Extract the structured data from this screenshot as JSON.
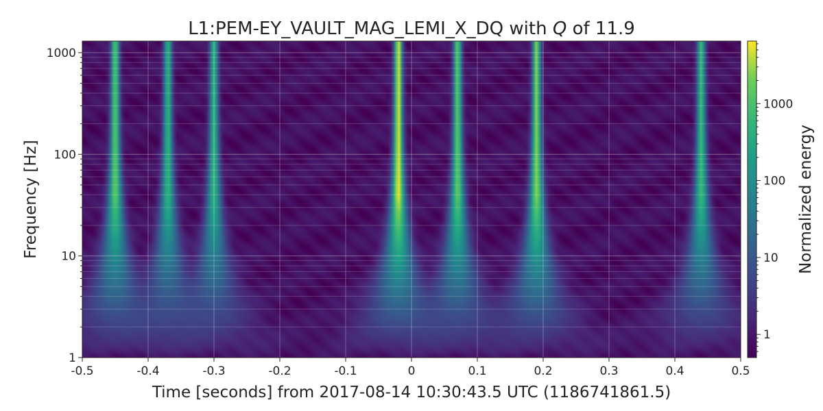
{
  "chart_data": {
    "type": "heatmap",
    "title": {
      "prefix": "L1:PEM-EY_VAULT_MAG_LEMI_X_DQ with ",
      "q_symbol": "Q",
      "suffix": " of 11.9"
    },
    "xlabel": "Time [seconds] from 2017-08-14 10:30:43.5 UTC (1186741861.5)",
    "ylabel": "Frequency [Hz]",
    "colorbar_label": "Normalized energy",
    "xlim": [
      -0.5,
      0.5
    ],
    "ylim": [
      1,
      1300
    ],
    "y_scale": "log",
    "colormap": "viridis",
    "grid": true,
    "x_ticks": [
      {
        "value": -0.5,
        "label": "-0.5"
      },
      {
        "value": -0.4,
        "label": "-0.4"
      },
      {
        "value": -0.3,
        "label": "-0.3"
      },
      {
        "value": -0.2,
        "label": "-0.2"
      },
      {
        "value": -0.1,
        "label": "-0.1"
      },
      {
        "value": 0,
        "label": "0"
      },
      {
        "value": 0.1,
        "label": "0.1"
      },
      {
        "value": 0.2,
        "label": "0.2"
      },
      {
        "value": 0.3,
        "label": "0.3"
      },
      {
        "value": 0.4,
        "label": "0.4"
      },
      {
        "value": 0.5,
        "label": "0.5"
      }
    ],
    "y_ticks": [
      {
        "value": 1,
        "label": "1"
      },
      {
        "value": 10,
        "label": "10"
      },
      {
        "value": 100,
        "label": "100"
      },
      {
        "value": 1000,
        "label": "1000"
      }
    ],
    "colorbar": {
      "scale": "log",
      "range": [
        0.5,
        6500
      ],
      "ticks": [
        {
          "value": 1,
          "label": "1"
        },
        {
          "value": 10,
          "label": "10"
        },
        {
          "value": 100,
          "label": "100"
        },
        {
          "value": 1000,
          "label": "1000"
        }
      ]
    },
    "glitches": [
      {
        "time": -0.45,
        "peak_energy": 1500
      },
      {
        "time": -0.37,
        "peak_energy": 500
      },
      {
        "time": -0.3,
        "peak_energy": 500
      },
      {
        "time": -0.02,
        "peak_energy": 6000
      },
      {
        "time": 0.07,
        "peak_energy": 1500
      },
      {
        "time": 0.19,
        "peak_energy": 2500
      },
      {
        "time": 0.44,
        "peak_energy": 700
      }
    ],
    "colors": {
      "viridis_low": "#440154",
      "viridis_mid": "#21918c",
      "viridis_high": "#fde725"
    }
  }
}
